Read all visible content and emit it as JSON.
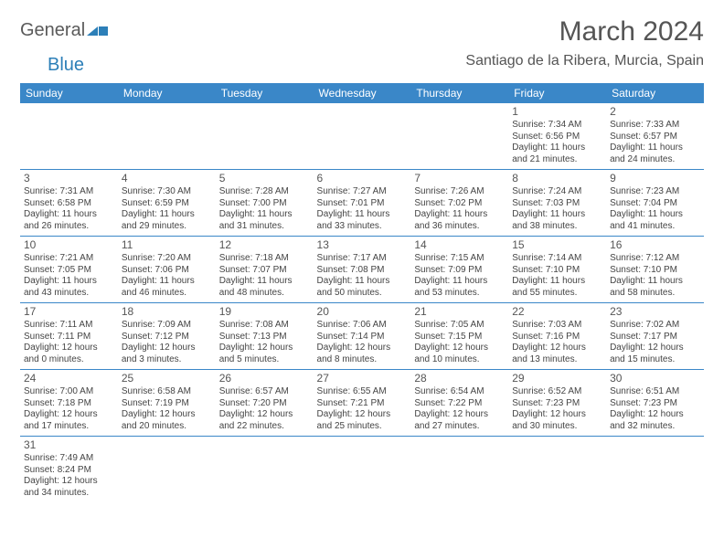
{
  "logo": {
    "part1": "General",
    "part2": "Blue"
  },
  "title": "March 2024",
  "location": "Santiago de la Ribera, Murcia, Spain",
  "weekdays": [
    "Sunday",
    "Monday",
    "Tuesday",
    "Wednesday",
    "Thursday",
    "Friday",
    "Saturday"
  ],
  "colors": {
    "header_bg": "#3a87c8",
    "header_text": "#ffffff",
    "border": "#3a87c8",
    "text": "#444444"
  },
  "weeks": [
    [
      null,
      null,
      null,
      null,
      null,
      {
        "day": "1",
        "sunrise": "Sunrise: 7:34 AM",
        "sunset": "Sunset: 6:56 PM",
        "daylight1": "Daylight: 11 hours",
        "daylight2": "and 21 minutes."
      },
      {
        "day": "2",
        "sunrise": "Sunrise: 7:33 AM",
        "sunset": "Sunset: 6:57 PM",
        "daylight1": "Daylight: 11 hours",
        "daylight2": "and 24 minutes."
      }
    ],
    [
      {
        "day": "3",
        "sunrise": "Sunrise: 7:31 AM",
        "sunset": "Sunset: 6:58 PM",
        "daylight1": "Daylight: 11 hours",
        "daylight2": "and 26 minutes."
      },
      {
        "day": "4",
        "sunrise": "Sunrise: 7:30 AM",
        "sunset": "Sunset: 6:59 PM",
        "daylight1": "Daylight: 11 hours",
        "daylight2": "and 29 minutes."
      },
      {
        "day": "5",
        "sunrise": "Sunrise: 7:28 AM",
        "sunset": "Sunset: 7:00 PM",
        "daylight1": "Daylight: 11 hours",
        "daylight2": "and 31 minutes."
      },
      {
        "day": "6",
        "sunrise": "Sunrise: 7:27 AM",
        "sunset": "Sunset: 7:01 PM",
        "daylight1": "Daylight: 11 hours",
        "daylight2": "and 33 minutes."
      },
      {
        "day": "7",
        "sunrise": "Sunrise: 7:26 AM",
        "sunset": "Sunset: 7:02 PM",
        "daylight1": "Daylight: 11 hours",
        "daylight2": "and 36 minutes."
      },
      {
        "day": "8",
        "sunrise": "Sunrise: 7:24 AM",
        "sunset": "Sunset: 7:03 PM",
        "daylight1": "Daylight: 11 hours",
        "daylight2": "and 38 minutes."
      },
      {
        "day": "9",
        "sunrise": "Sunrise: 7:23 AM",
        "sunset": "Sunset: 7:04 PM",
        "daylight1": "Daylight: 11 hours",
        "daylight2": "and 41 minutes."
      }
    ],
    [
      {
        "day": "10",
        "sunrise": "Sunrise: 7:21 AM",
        "sunset": "Sunset: 7:05 PM",
        "daylight1": "Daylight: 11 hours",
        "daylight2": "and 43 minutes."
      },
      {
        "day": "11",
        "sunrise": "Sunrise: 7:20 AM",
        "sunset": "Sunset: 7:06 PM",
        "daylight1": "Daylight: 11 hours",
        "daylight2": "and 46 minutes."
      },
      {
        "day": "12",
        "sunrise": "Sunrise: 7:18 AM",
        "sunset": "Sunset: 7:07 PM",
        "daylight1": "Daylight: 11 hours",
        "daylight2": "and 48 minutes."
      },
      {
        "day": "13",
        "sunrise": "Sunrise: 7:17 AM",
        "sunset": "Sunset: 7:08 PM",
        "daylight1": "Daylight: 11 hours",
        "daylight2": "and 50 minutes."
      },
      {
        "day": "14",
        "sunrise": "Sunrise: 7:15 AM",
        "sunset": "Sunset: 7:09 PM",
        "daylight1": "Daylight: 11 hours",
        "daylight2": "and 53 minutes."
      },
      {
        "day": "15",
        "sunrise": "Sunrise: 7:14 AM",
        "sunset": "Sunset: 7:10 PM",
        "daylight1": "Daylight: 11 hours",
        "daylight2": "and 55 minutes."
      },
      {
        "day": "16",
        "sunrise": "Sunrise: 7:12 AM",
        "sunset": "Sunset: 7:10 PM",
        "daylight1": "Daylight: 11 hours",
        "daylight2": "and 58 minutes."
      }
    ],
    [
      {
        "day": "17",
        "sunrise": "Sunrise: 7:11 AM",
        "sunset": "Sunset: 7:11 PM",
        "daylight1": "Daylight: 12 hours",
        "daylight2": "and 0 minutes."
      },
      {
        "day": "18",
        "sunrise": "Sunrise: 7:09 AM",
        "sunset": "Sunset: 7:12 PM",
        "daylight1": "Daylight: 12 hours",
        "daylight2": "and 3 minutes."
      },
      {
        "day": "19",
        "sunrise": "Sunrise: 7:08 AM",
        "sunset": "Sunset: 7:13 PM",
        "daylight1": "Daylight: 12 hours",
        "daylight2": "and 5 minutes."
      },
      {
        "day": "20",
        "sunrise": "Sunrise: 7:06 AM",
        "sunset": "Sunset: 7:14 PM",
        "daylight1": "Daylight: 12 hours",
        "daylight2": "and 8 minutes."
      },
      {
        "day": "21",
        "sunrise": "Sunrise: 7:05 AM",
        "sunset": "Sunset: 7:15 PM",
        "daylight1": "Daylight: 12 hours",
        "daylight2": "and 10 minutes."
      },
      {
        "day": "22",
        "sunrise": "Sunrise: 7:03 AM",
        "sunset": "Sunset: 7:16 PM",
        "daylight1": "Daylight: 12 hours",
        "daylight2": "and 13 minutes."
      },
      {
        "day": "23",
        "sunrise": "Sunrise: 7:02 AM",
        "sunset": "Sunset: 7:17 PM",
        "daylight1": "Daylight: 12 hours",
        "daylight2": "and 15 minutes."
      }
    ],
    [
      {
        "day": "24",
        "sunrise": "Sunrise: 7:00 AM",
        "sunset": "Sunset: 7:18 PM",
        "daylight1": "Daylight: 12 hours",
        "daylight2": "and 17 minutes."
      },
      {
        "day": "25",
        "sunrise": "Sunrise: 6:58 AM",
        "sunset": "Sunset: 7:19 PM",
        "daylight1": "Daylight: 12 hours",
        "daylight2": "and 20 minutes."
      },
      {
        "day": "26",
        "sunrise": "Sunrise: 6:57 AM",
        "sunset": "Sunset: 7:20 PM",
        "daylight1": "Daylight: 12 hours",
        "daylight2": "and 22 minutes."
      },
      {
        "day": "27",
        "sunrise": "Sunrise: 6:55 AM",
        "sunset": "Sunset: 7:21 PM",
        "daylight1": "Daylight: 12 hours",
        "daylight2": "and 25 minutes."
      },
      {
        "day": "28",
        "sunrise": "Sunrise: 6:54 AM",
        "sunset": "Sunset: 7:22 PM",
        "daylight1": "Daylight: 12 hours",
        "daylight2": "and 27 minutes."
      },
      {
        "day": "29",
        "sunrise": "Sunrise: 6:52 AM",
        "sunset": "Sunset: 7:23 PM",
        "daylight1": "Daylight: 12 hours",
        "daylight2": "and 30 minutes."
      },
      {
        "day": "30",
        "sunrise": "Sunrise: 6:51 AM",
        "sunset": "Sunset: 7:23 PM",
        "daylight1": "Daylight: 12 hours",
        "daylight2": "and 32 minutes."
      }
    ],
    [
      {
        "day": "31",
        "sunrise": "Sunrise: 7:49 AM",
        "sunset": "Sunset: 8:24 PM",
        "daylight1": "Daylight: 12 hours",
        "daylight2": "and 34 minutes."
      },
      null,
      null,
      null,
      null,
      null,
      null
    ]
  ]
}
